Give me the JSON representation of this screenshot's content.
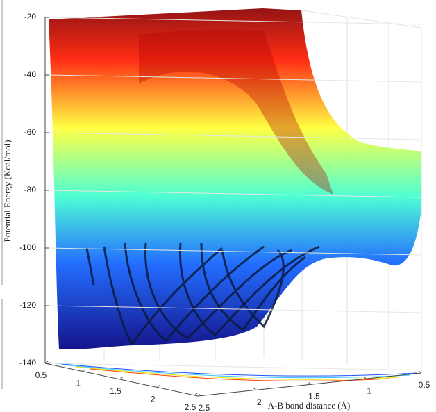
{
  "chart_data": {
    "type": "surface",
    "zlabel": "Potential Energy (Kcal/mol)",
    "xlabel": "A-B bond distance (Å)",
    "zlim": [
      -140,
      -20
    ],
    "zticks": [
      -20,
      -40,
      -60,
      -80,
      -100,
      -120,
      -140
    ],
    "ylim": [
      0.5,
      2.5
    ],
    "yticks": [
      0.5,
      1,
      1.5,
      2,
      2.5
    ],
    "xlim": [
      0.5,
      2.5
    ],
    "xticks": [
      2.5,
      2,
      1.5,
      1,
      0.5
    ],
    "grid": true
  }
}
